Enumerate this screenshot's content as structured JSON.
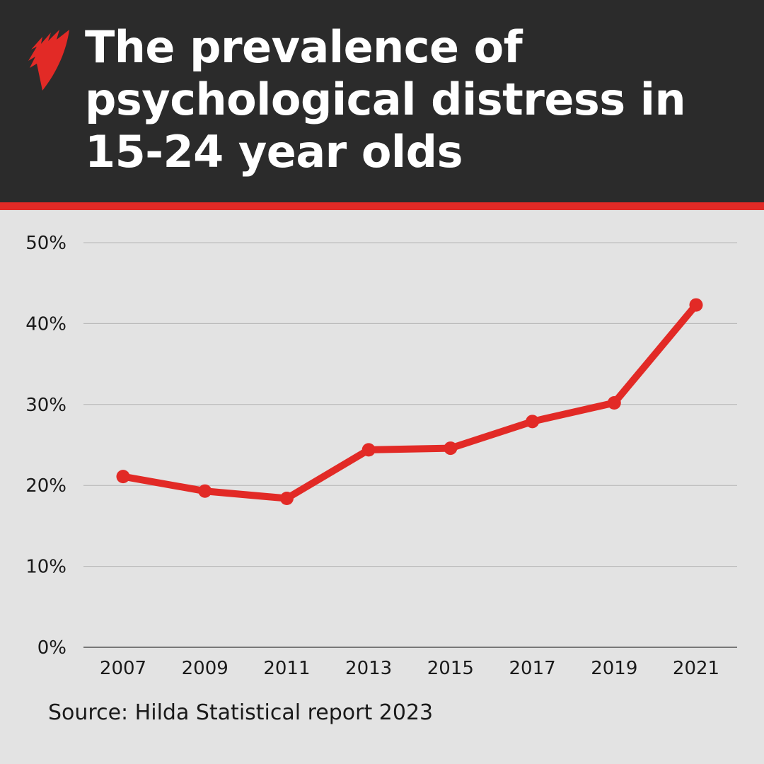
{
  "title": "The prevalence of psychological distress in 15-24 year olds",
  "title_lines": [
    "The prevalence of",
    "psychological distress in",
    "15-24 year olds"
  ],
  "source": "Source: Hilda Statistical report 2023",
  "colors": {
    "header": "#2b2b2b",
    "accent": "#e22a26",
    "background": "#e3e3e3"
  },
  "chart_data": {
    "type": "line",
    "title": "The prevalence of psychological distress in 15-24 year olds",
    "xlabel": "",
    "ylabel": "",
    "categories": [
      "2007",
      "2009",
      "2011",
      "2013",
      "2015",
      "2017",
      "2019",
      "2021"
    ],
    "values": [
      21.1,
      19.3,
      18.4,
      24.4,
      24.6,
      27.9,
      30.2,
      42.3
    ],
    "ylim": [
      0,
      50
    ],
    "yticks": [
      "0%",
      "10%",
      "20%",
      "30%",
      "40%",
      "50%"
    ],
    "grid": true,
    "legend": "none",
    "line_color": "#e22a26"
  }
}
